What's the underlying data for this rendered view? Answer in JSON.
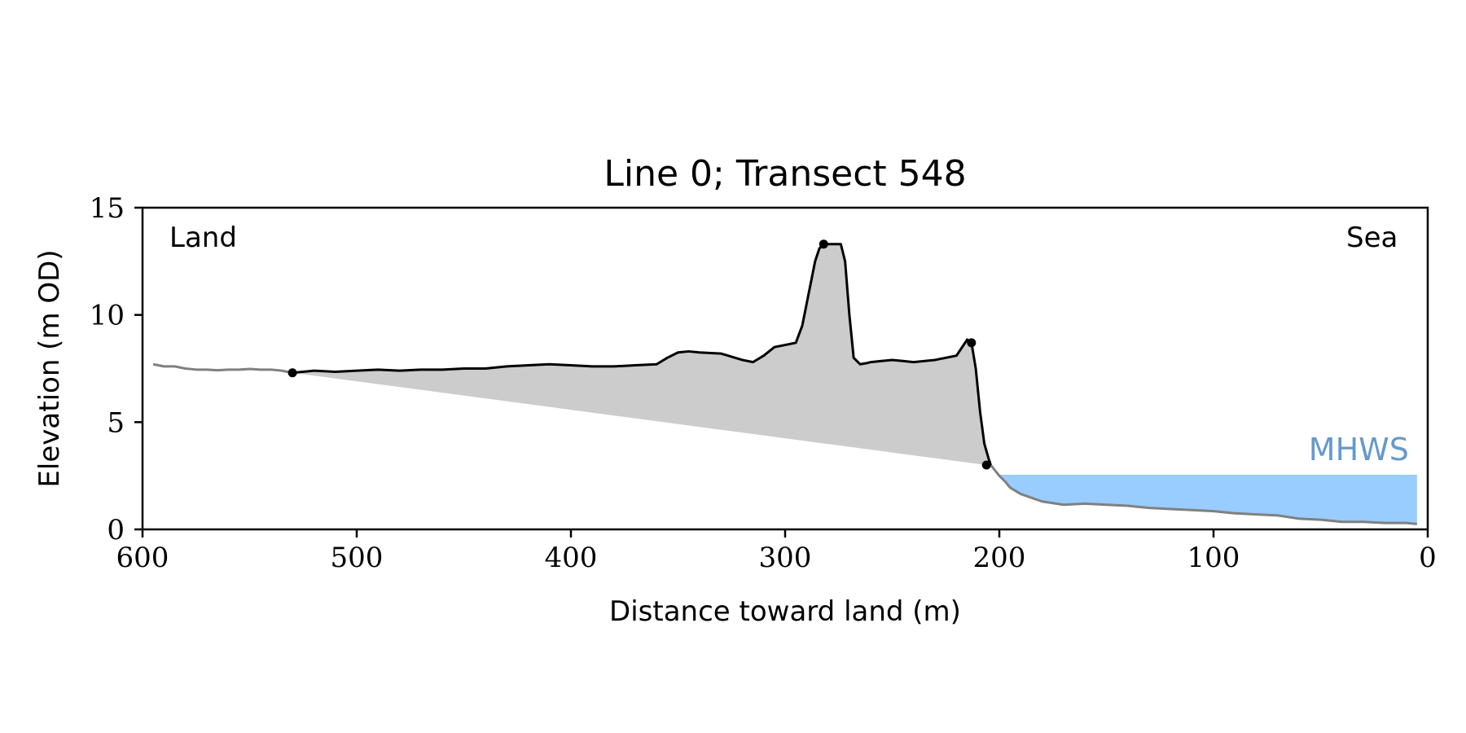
{
  "chart_data": {
    "type": "line",
    "title": "Line 0; Transect 548",
    "xlabel": "Distance toward land (m)",
    "ylabel": "Elevation (m OD)",
    "xlim": [
      600,
      0
    ],
    "ylim": [
      0,
      15
    ],
    "x_ticks": [
      600,
      500,
      400,
      300,
      200,
      100,
      0
    ],
    "y_ticks": [
      0,
      5,
      10,
      15
    ],
    "grid": false,
    "annotations": {
      "land": "Land",
      "sea": "Sea",
      "mhws_label": "MHWS"
    },
    "mhws": {
      "elevation": 2.55,
      "x_from": 200,
      "x_to": 5
    },
    "colors": {
      "profile_land": "#808080",
      "profile_sea": "#808080",
      "profile_dune": "#000000",
      "fill_volume": "#cccccc",
      "mhws_fill": "#99ccff",
      "mhws_text": "#6699cc"
    },
    "series": [
      {
        "role": "profile_land",
        "x": [
          595,
          590,
          585,
          580,
          575,
          570,
          565,
          560,
          555,
          550,
          545,
          540,
          535,
          530
        ],
        "y": [
          7.7,
          7.6,
          7.6,
          7.5,
          7.45,
          7.45,
          7.42,
          7.45,
          7.45,
          7.48,
          7.45,
          7.45,
          7.4,
          7.3
        ]
      },
      {
        "role": "profile_dune",
        "x": [
          530,
          520,
          510,
          500,
          490,
          480,
          470,
          460,
          450,
          440,
          430,
          420,
          410,
          400,
          390,
          380,
          370,
          360,
          355,
          350,
          345,
          340,
          330,
          320,
          315,
          310,
          305,
          300,
          295,
          292,
          290,
          288,
          286,
          284,
          282,
          280,
          278,
          276,
          274,
          272,
          270,
          268,
          265,
          262,
          260,
          255,
          250,
          245,
          240,
          230,
          220,
          215,
          213,
          211,
          209,
          207,
          205,
          204
        ],
        "y": [
          7.3,
          7.4,
          7.35,
          7.4,
          7.45,
          7.4,
          7.45,
          7.45,
          7.5,
          7.5,
          7.6,
          7.65,
          7.7,
          7.65,
          7.6,
          7.6,
          7.65,
          7.7,
          8.0,
          8.25,
          8.3,
          8.25,
          8.2,
          7.9,
          7.8,
          8.1,
          8.5,
          8.6,
          8.7,
          9.5,
          10.5,
          11.5,
          12.5,
          13.1,
          13.3,
          13.3,
          13.3,
          13.3,
          13.3,
          12.5,
          10.0,
          8.0,
          7.7,
          7.75,
          7.8,
          7.85,
          7.9,
          7.85,
          7.8,
          7.9,
          8.1,
          8.85,
          8.7,
          7.5,
          5.5,
          4.0,
          3.3,
          3.0
        ]
      },
      {
        "role": "profile_sea",
        "x": [
          204,
          200,
          197,
          195,
          190,
          180,
          170,
          160,
          150,
          140,
          130,
          120,
          110,
          100,
          90,
          80,
          70,
          60,
          50,
          40,
          30,
          20,
          10,
          5
        ],
        "y": [
          3.0,
          2.5,
          2.2,
          1.95,
          1.65,
          1.3,
          1.15,
          1.2,
          1.15,
          1.1,
          1.0,
          0.95,
          0.9,
          0.85,
          0.75,
          0.7,
          0.65,
          0.5,
          0.45,
          0.35,
          0.35,
          0.3,
          0.3,
          0.25
        ]
      }
    ],
    "markers": [
      {
        "x": 530,
        "y": 7.3
      },
      {
        "x": 282,
        "y": 13.3
      },
      {
        "x": 213,
        "y": 8.7
      },
      {
        "x": 206,
        "y": 3.0
      }
    ],
    "volume_baseline": [
      [
        530,
        7.3
      ],
      [
        206,
        3.0
      ]
    ]
  }
}
